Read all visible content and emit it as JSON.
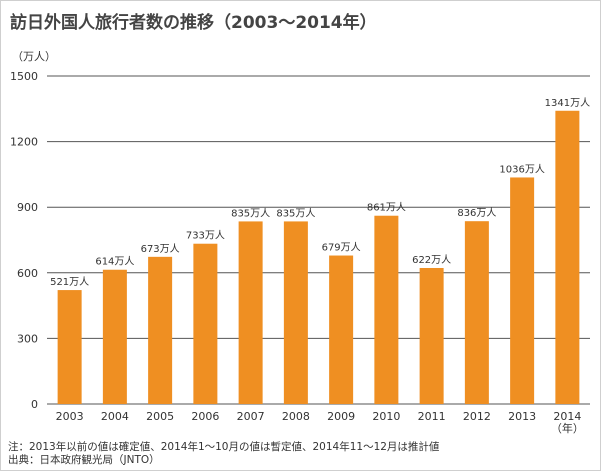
{
  "title": "訪日外国人旅行者数の推移（2003〜2014年）",
  "notes": {
    "line1": "注：2013年以前の値は確定値、2014年1〜10月の値は暫定値、2014年11〜12月は推計値",
    "line2": "出典：日本政府観光局（JNTO）"
  },
  "colors": {
    "bar": "#ef8f22",
    "grid": "#555555",
    "text": "#333333"
  },
  "chart_data": {
    "type": "bar",
    "title": "訪日外国人旅行者数の推移（2003〜2014年）",
    "categories": [
      "2003",
      "2004",
      "2005",
      "2006",
      "2007",
      "2008",
      "2009",
      "2010",
      "2011",
      "2012",
      "2013",
      "2014"
    ],
    "values": [
      521,
      614,
      673,
      733,
      835,
      835,
      679,
      861,
      622,
      836,
      1036,
      1341
    ],
    "data_labels": [
      "521万人",
      "614万人",
      "673万人",
      "733万人",
      "835万人",
      "835万人",
      "679万人",
      "861万人",
      "622万人",
      "836万人",
      "1036万人",
      "1341万人"
    ],
    "ylabel": "（万人）",
    "xlabel": "（年）",
    "yticks": [
      0,
      300,
      600,
      900,
      1200,
      1500
    ],
    "ylim": [
      0,
      1500
    ],
    "grid": true,
    "legend": "none"
  }
}
